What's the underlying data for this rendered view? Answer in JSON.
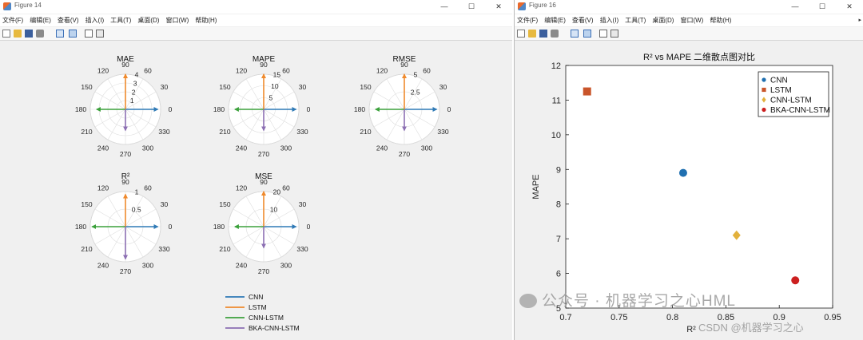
{
  "window1": {
    "title": "Figure 14",
    "menu": [
      "文件(F)",
      "编辑(E)",
      "查看(V)",
      "插入(I)",
      "工具(T)",
      "桌面(D)",
      "窗口(W)",
      "帮助(H)"
    ],
    "plots": [
      {
        "title": "MAE",
        "rlabels": [
          "1",
          "2",
          "3",
          "4"
        ]
      },
      {
        "title": "MAPE",
        "rlabels": [
          "5",
          "10",
          "15"
        ]
      },
      {
        "title": "RMSE",
        "rlabels": [
          "2.5",
          "5"
        ]
      },
      {
        "title": "R²",
        "rlabels": [
          "0.5",
          "1"
        ]
      },
      {
        "title": "MSE",
        "rlabels": [
          "10",
          "20"
        ]
      }
    ],
    "angle_labels": [
      "0",
      "30",
      "60",
      "90",
      "120",
      "150",
      "180",
      "210",
      "240",
      "270",
      "300",
      "330"
    ],
    "legend": [
      "CNN",
      "LSTM",
      "CNN-LSTM",
      "BKA-CNN-LSTM"
    ]
  },
  "window2": {
    "title": "Figure 16",
    "menu": [
      "文件(F)",
      "编辑(E)",
      "查看(V)",
      "插入(I)",
      "工具(T)",
      "桌面(D)",
      "窗口(W)",
      "帮助(H)"
    ]
  },
  "chart_data": {
    "type": "scatter",
    "title": "R² vs MAPE 二维散点图对比",
    "xlabel": "R²",
    "ylabel": "MAPE",
    "xlim": [
      0.7,
      0.95
    ],
    "ylim": [
      5,
      12
    ],
    "xticks": [
      0.7,
      0.75,
      0.8,
      0.85,
      0.9,
      0.95
    ],
    "yticks": [
      5,
      6,
      7,
      8,
      9,
      10,
      11,
      12
    ],
    "xtick_labels": [
      "0.7",
      "0.75",
      "0.8",
      "0.85",
      "0.9",
      "0.95"
    ],
    "ytick_labels": [
      "5",
      "6",
      "7",
      "8",
      "9",
      "10",
      "11",
      "12"
    ],
    "legend_position": "top-right",
    "series": [
      {
        "name": "CNN",
        "x": 0.81,
        "y": 8.9,
        "color": "#1f6fb0",
        "marker": "circle"
      },
      {
        "name": "LSTM",
        "x": 0.72,
        "y": 11.25,
        "color": "#c9552a",
        "marker": "square"
      },
      {
        "name": "CNN-LSTM",
        "x": 0.86,
        "y": 7.1,
        "color": "#e2b13c",
        "marker": "diamond"
      },
      {
        "name": "BKA-CNN-LSTM",
        "x": 0.915,
        "y": 5.8,
        "color": "#cc1f1f",
        "marker": "circle"
      }
    ]
  },
  "colors": {
    "cnn": "#2f7ab6",
    "lstm": "#ef8a2d",
    "cnn_lstm": "#3ba13b",
    "bka": "#8c6fb3"
  },
  "watermark": {
    "line1": "公众号 · 机器学习之心HML",
    "line2": "CSDN @机器学习之心"
  }
}
